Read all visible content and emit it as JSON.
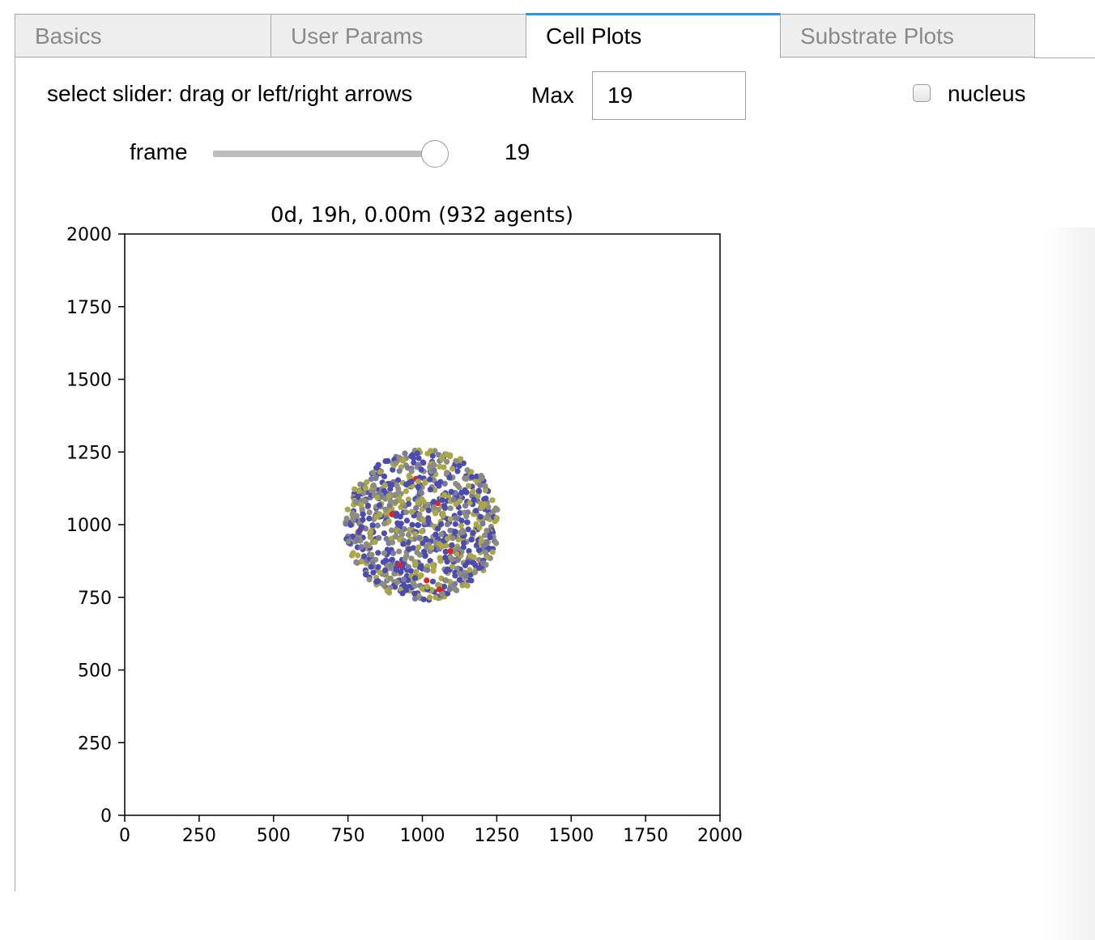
{
  "tabs": [
    {
      "label": "Basics",
      "active": false
    },
    {
      "label": "User Params",
      "active": false
    },
    {
      "label": "Cell Plots",
      "active": true
    },
    {
      "label": "Substrate Plots",
      "active": false
    }
  ],
  "controls": {
    "slider_hint": "select slider: drag or left/right arrows",
    "max_label": "Max",
    "max_value": "19",
    "nucleus_label": "nucleus",
    "nucleus_checked": false,
    "frame_label": "frame",
    "frame_value": "19",
    "frame_max": 19
  },
  "colors": {
    "accent": "#2196f3",
    "cell_colors": [
      "#4b4bb4",
      "#8c8c80",
      "#a9a845",
      "#7a7a9c",
      "#e6201a"
    ]
  },
  "chart_data": {
    "type": "scatter",
    "title": "0d, 19h, 0.00m (932 agents)",
    "xlabel": "",
    "ylabel": "",
    "xlim": [
      0,
      2000
    ],
    "ylim": [
      0,
      2000
    ],
    "xticks": [
      "0",
      "250",
      "500",
      "750",
      "1000",
      "1250",
      "1500",
      "1750",
      "2000"
    ],
    "yticks": [
      "0",
      "250",
      "500",
      "750",
      "1000",
      "1250",
      "1500",
      "1750",
      "2000"
    ],
    "grid": false,
    "agents": 932,
    "cluster": {
      "center": [
        1000,
        1000
      ],
      "radius": 260
    },
    "series": [
      {
        "color": "#4b4bb4",
        "fraction": 0.34
      },
      {
        "color": "#8c8c80",
        "fraction": 0.26
      },
      {
        "color": "#a9a845",
        "fraction": 0.28
      },
      {
        "color": "#7a7a9c",
        "fraction": 0.11
      },
      {
        "color": "#e6201a",
        "fraction": 0.01
      }
    ]
  }
}
